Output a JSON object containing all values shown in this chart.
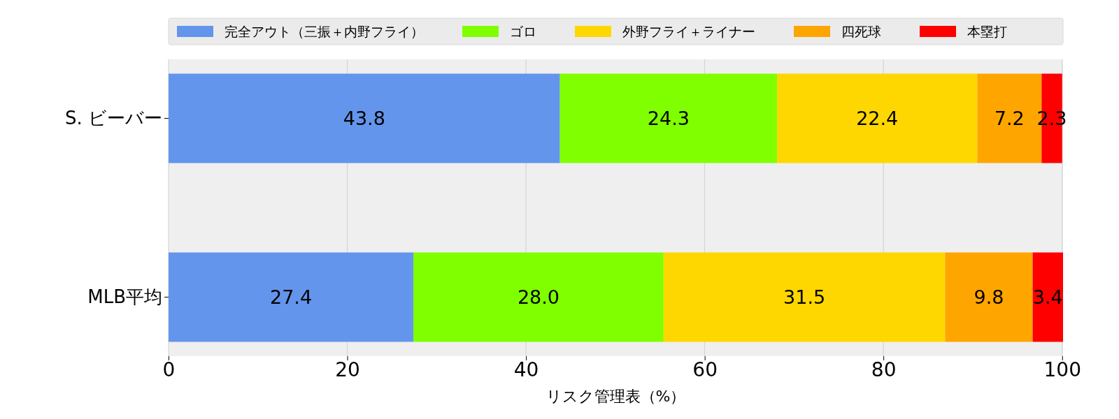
{
  "chart_data": {
    "type": "bar",
    "orientation": "horizontal",
    "stacked": true,
    "xlabel": "リスク管理表（%）",
    "categories": [
      "S. ビーバー",
      "MLB平均"
    ],
    "series": [
      {
        "name": "完全アウト（三振＋内野フライ）",
        "color": "#6495ed",
        "values": [
          43.8,
          27.4
        ]
      },
      {
        "name": "ゴロ",
        "color": "#7fff00",
        "values": [
          24.3,
          28.0
        ]
      },
      {
        "name": "外野フライ＋ライナー",
        "color": "#ffd700",
        "values": [
          22.4,
          31.5
        ]
      },
      {
        "name": "四死球",
        "color": "#ffa500",
        "values": [
          7.2,
          9.8
        ]
      },
      {
        "name": "本塁打",
        "color": "#ff0000",
        "values": [
          2.3,
          3.4
        ]
      }
    ],
    "value_labels": [
      [
        "43.8",
        "27.4"
      ],
      [
        "24.3",
        "28.0"
      ],
      [
        "22.4",
        "31.5"
      ],
      [
        "7.2",
        "9.8"
      ],
      [
        "2.3",
        "3.4"
      ]
    ],
    "xlim": [
      0,
      100.1
    ],
    "xticks": [
      0,
      20,
      40,
      60,
      80,
      100
    ],
    "grid": "x",
    "legend": "top"
  }
}
